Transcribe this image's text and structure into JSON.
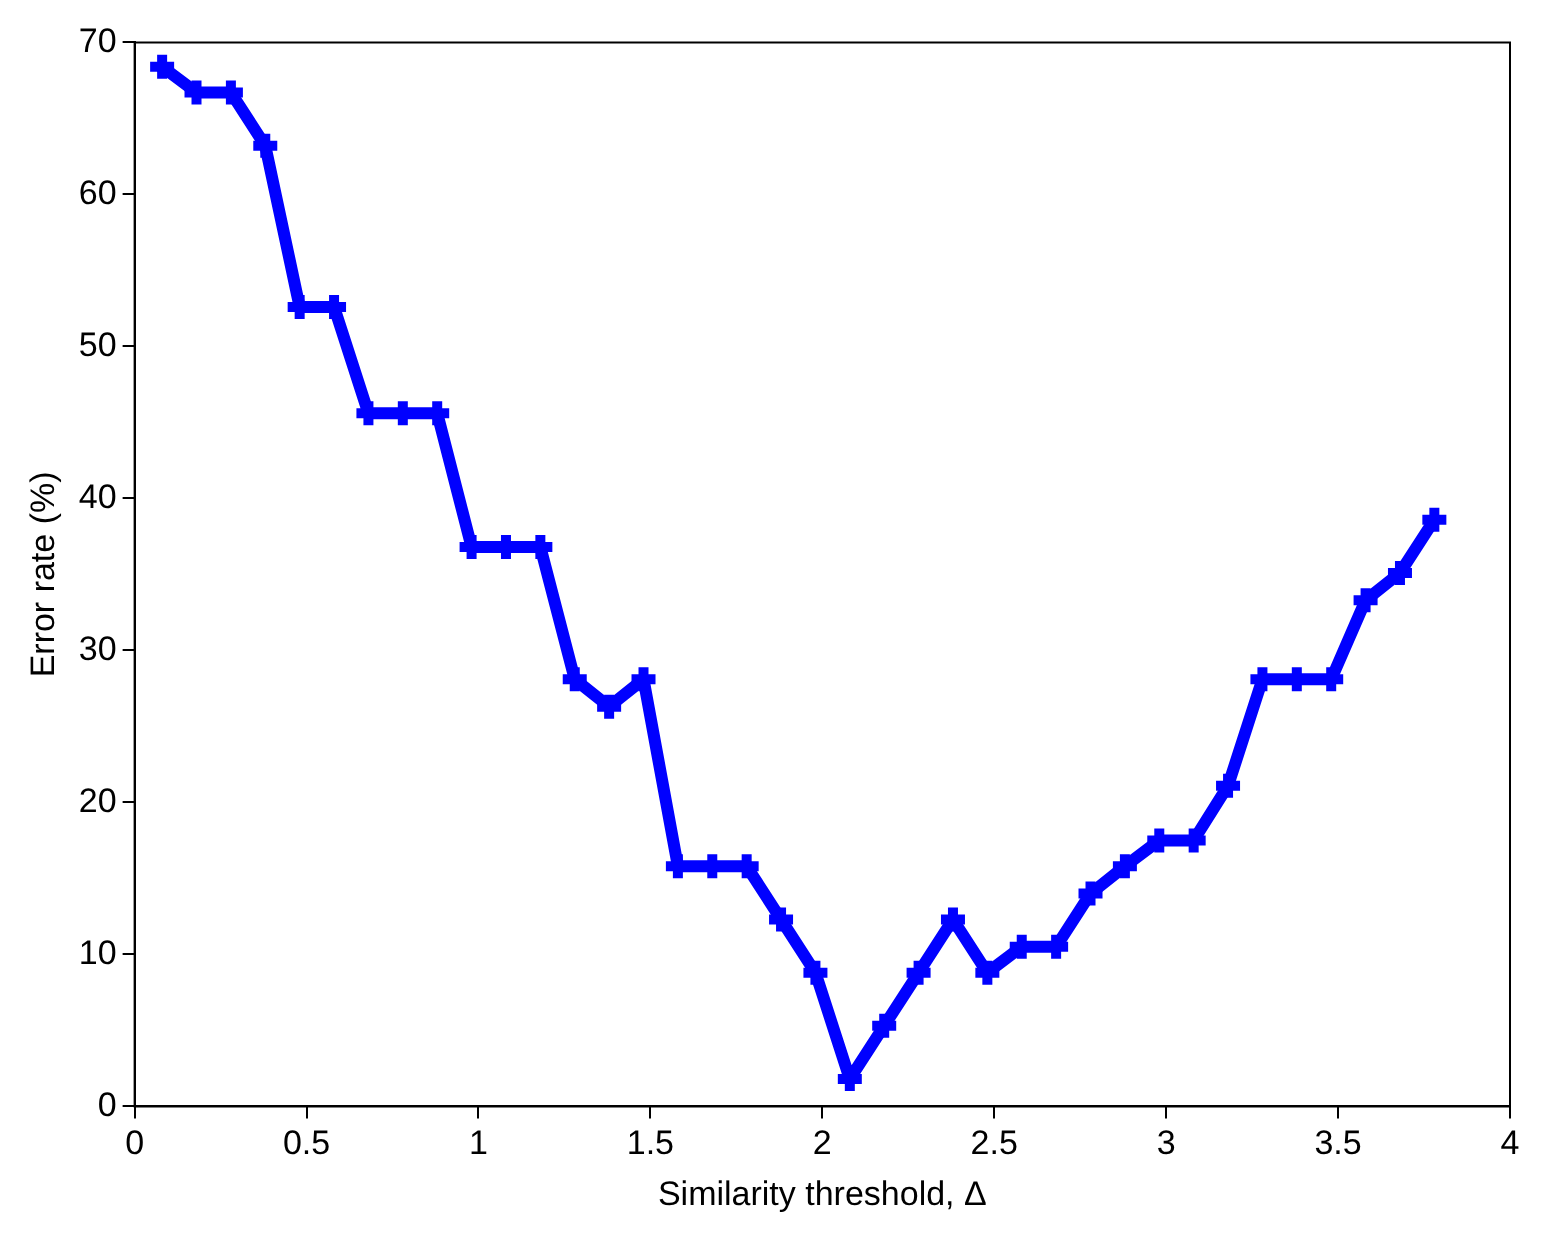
{
  "chart_data": {
    "type": "line",
    "xlabel": "Similarity threshold, Δ",
    "ylabel": "Error rate (%)",
    "x": [
      0.08,
      0.18,
      0.28,
      0.38,
      0.48,
      0.58,
      0.68,
      0.78,
      0.88,
      0.98,
      1.08,
      1.18,
      1.28,
      1.38,
      1.48,
      1.58,
      1.68,
      1.78,
      1.88,
      1.98,
      2.08,
      2.18,
      2.28,
      2.38,
      2.48,
      2.58,
      2.68,
      2.78,
      2.88,
      2.98,
      3.08,
      3.18,
      3.28,
      3.38,
      3.48,
      3.58,
      3.68,
      3.78
    ],
    "series": [
      {
        "color": "#0000ff",
        "values": [
          68.4,
          66.7,
          66.7,
          63.2,
          52.6,
          52.6,
          45.6,
          45.6,
          45.6,
          36.8,
          36.8,
          36.8,
          28.1,
          26.3,
          28.1,
          15.8,
          15.8,
          15.8,
          12.3,
          8.8,
          1.8,
          5.3,
          8.8,
          12.3,
          8.8,
          10.5,
          10.5,
          14.0,
          15.8,
          17.5,
          17.5,
          21.1,
          28.1,
          28.1,
          28.1,
          33.3,
          35.1,
          38.6
        ]
      }
    ],
    "xlim": [
      0,
      4
    ],
    "xticks": [
      0,
      0.5,
      1,
      1.5,
      2,
      2.5,
      3,
      3.5,
      4
    ],
    "ylim": [
      0,
      70
    ],
    "yticks": [
      0,
      10,
      20,
      30,
      40,
      50,
      60,
      70
    ],
    "grid": false,
    "legend": false,
    "marker": "cross",
    "line_style": "solid"
  }
}
